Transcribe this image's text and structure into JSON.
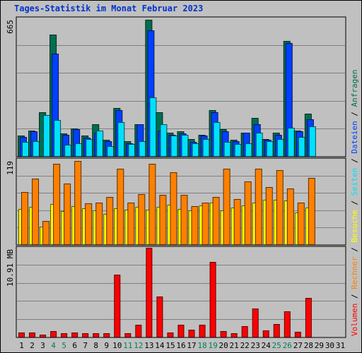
{
  "title": "Tages-Statistik im Monat Februar 2023",
  "colors": {
    "anfragen": "#006e50",
    "dateien": "#0040ff",
    "seiten": "#00e0ff",
    "besuche": "#ffff00",
    "rechner": "#ff8000",
    "volumen": "#ff0000",
    "weekend": "#00805a",
    "weekday": "#000000"
  },
  "chart_data": [
    {
      "type": "bar",
      "panel": "top",
      "ymax_label": "665",
      "ylim": [
        0,
        665
      ],
      "categories": [
        "1",
        "2",
        "3",
        "4",
        "5",
        "6",
        "7",
        "8",
        "9",
        "10",
        "11",
        "12",
        "13",
        "14",
        "15",
        "16",
        "17",
        "18",
        "19",
        "20",
        "21",
        "22",
        "23",
        "24",
        "25",
        "26",
        "27",
        "28",
        "29",
        "30",
        "31"
      ],
      "series": [
        {
          "name": "Anfragen",
          "values": [
            98,
            123,
            213,
            587,
            108,
            133,
            98,
            153,
            78,
            233,
            73,
            153,
            659,
            213,
            113,
            118,
            83,
            103,
            223,
            128,
            78,
            113,
            183,
            83,
            113,
            557,
            123,
            203,
            0,
            0,
            0
          ]
        },
        {
          "name": "Dateien",
          "values": [
            93,
            118,
            0,
            494,
            103,
            128,
            88,
            113,
            73,
            223,
            63,
            153,
            608,
            123,
            103,
            108,
            68,
            98,
            213,
            118,
            73,
            113,
            153,
            78,
            103,
            547,
            118,
            178,
            0,
            0,
            0
          ]
        },
        {
          "name": "Seiten",
          "values": [
            68,
            73,
            198,
            173,
            53,
            63,
            83,
            123,
            48,
            163,
            58,
            73,
            282,
            153,
            98,
            103,
            63,
            83,
            163,
            68,
            58,
            63,
            113,
            73,
            83,
            138,
            93,
            143,
            0,
            0,
            0
          ]
        }
      ]
    },
    {
      "type": "bar",
      "panel": "middle",
      "ymax_label": "119",
      "ylim": [
        0,
        119
      ],
      "categories": [
        "1",
        "2",
        "3",
        "4",
        "5",
        "6",
        "7",
        "8",
        "9",
        "10",
        "11",
        "12",
        "13",
        "14",
        "15",
        "16",
        "17",
        "18",
        "19",
        "20",
        "21",
        "22",
        "23",
        "24",
        "25",
        "26",
        "27",
        "28",
        "29",
        "30",
        "31"
      ],
      "series": [
        {
          "name": "Besuche",
          "values": [
            50,
            53,
            25,
            57,
            47,
            54,
            51,
            48,
            43,
            51,
            49,
            53,
            49,
            53,
            56,
            50,
            48,
            55,
            59,
            48,
            52,
            55,
            59,
            62,
            62,
            61,
            45,
            52,
            0,
            0,
            0
          ]
        },
        {
          "name": "Rechner",
          "values": [
            73,
            92,
            33,
            113,
            85,
            117,
            58,
            59,
            66,
            106,
            59,
            70,
            113,
            69,
            101,
            69,
            54,
            59,
            66,
            106,
            63,
            88,
            106,
            80,
            104,
            78,
            59,
            93,
            0,
            0,
            0
          ]
        }
      ]
    },
    {
      "type": "bar",
      "panel": "bottom",
      "ymax_label": "10.91 MB",
      "ylim": [
        0,
        10.91
      ],
      "categories": [
        "1",
        "2",
        "3",
        "4",
        "5",
        "6",
        "7",
        "8",
        "9",
        "10",
        "11",
        "12",
        "13",
        "14",
        "15",
        "16",
        "17",
        "18",
        "19",
        "20",
        "21",
        "22",
        "23",
        "24",
        "25",
        "26",
        "27",
        "28",
        "29",
        "30",
        "31"
      ],
      "series": [
        {
          "name": "Volumen",
          "values": [
            0.55,
            0.55,
            0.3,
            0.7,
            0.4,
            0.55,
            0.4,
            0.4,
            0.4,
            7.6,
            0.4,
            1.5,
            11.0,
            4.9,
            0.5,
            1.5,
            0.9,
            1.5,
            9.2,
            0.65,
            0.4,
            1.3,
            3.5,
            0.8,
            1.6,
            3.1,
            0.6,
            4.8,
            0,
            0,
            0
          ]
        }
      ]
    }
  ],
  "x_labels": [
    "1",
    "2",
    "3",
    "4",
    "5",
    "6",
    "7",
    "8",
    "9",
    "10",
    "11",
    "12",
    "13",
    "14",
    "15",
    "16",
    "17",
    "18",
    "19",
    "20",
    "21",
    "22",
    "23",
    "24",
    "25",
    "26",
    "27",
    "28",
    "29",
    "30",
    "31"
  ],
  "weekend_days": [
    4,
    5,
    11,
    12,
    18,
    19,
    25,
    26
  ],
  "legend": [
    {
      "label": "Volumen",
      "color": "#ff0000"
    },
    {
      "label": "Rechner",
      "color": "#ff8000"
    },
    {
      "label": "Besuche",
      "color": "#ffff00"
    },
    {
      "label": "Seiten",
      "color": "#00e0ff"
    },
    {
      "label": "Dateien",
      "color": "#0040ff"
    },
    {
      "label": "Anfragen",
      "color": "#006e50"
    }
  ],
  "legend_separator": " / "
}
